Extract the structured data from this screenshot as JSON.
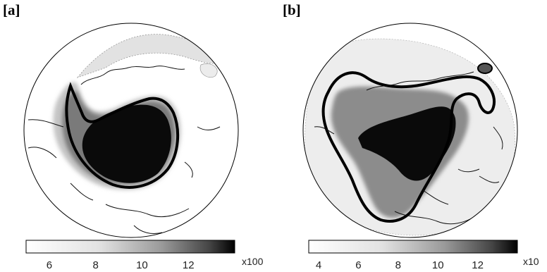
{
  "panels": [
    {
      "label": "[a]",
      "colorbar": {
        "ticks": [
          "6",
          "8",
          "10",
          "12"
        ],
        "tick_values": [
          6,
          8,
          10,
          12
        ],
        "range": [
          5,
          14
        ],
        "unit": "x100"
      }
    },
    {
      "label": "[b]",
      "colorbar": {
        "ticks": [
          "4",
          "6",
          "8",
          "10",
          "12"
        ],
        "tick_values": [
          4,
          6,
          8,
          10,
          12
        ],
        "range": [
          3.5,
          14
        ],
        "unit": "x10"
      }
    }
  ],
  "colors": {
    "ink": "#000000",
    "coast": "#111111",
    "dark_field": "#0a0a0a",
    "gray_mid": "#7a7a7a",
    "gray_light": "#d6d6d6"
  }
}
